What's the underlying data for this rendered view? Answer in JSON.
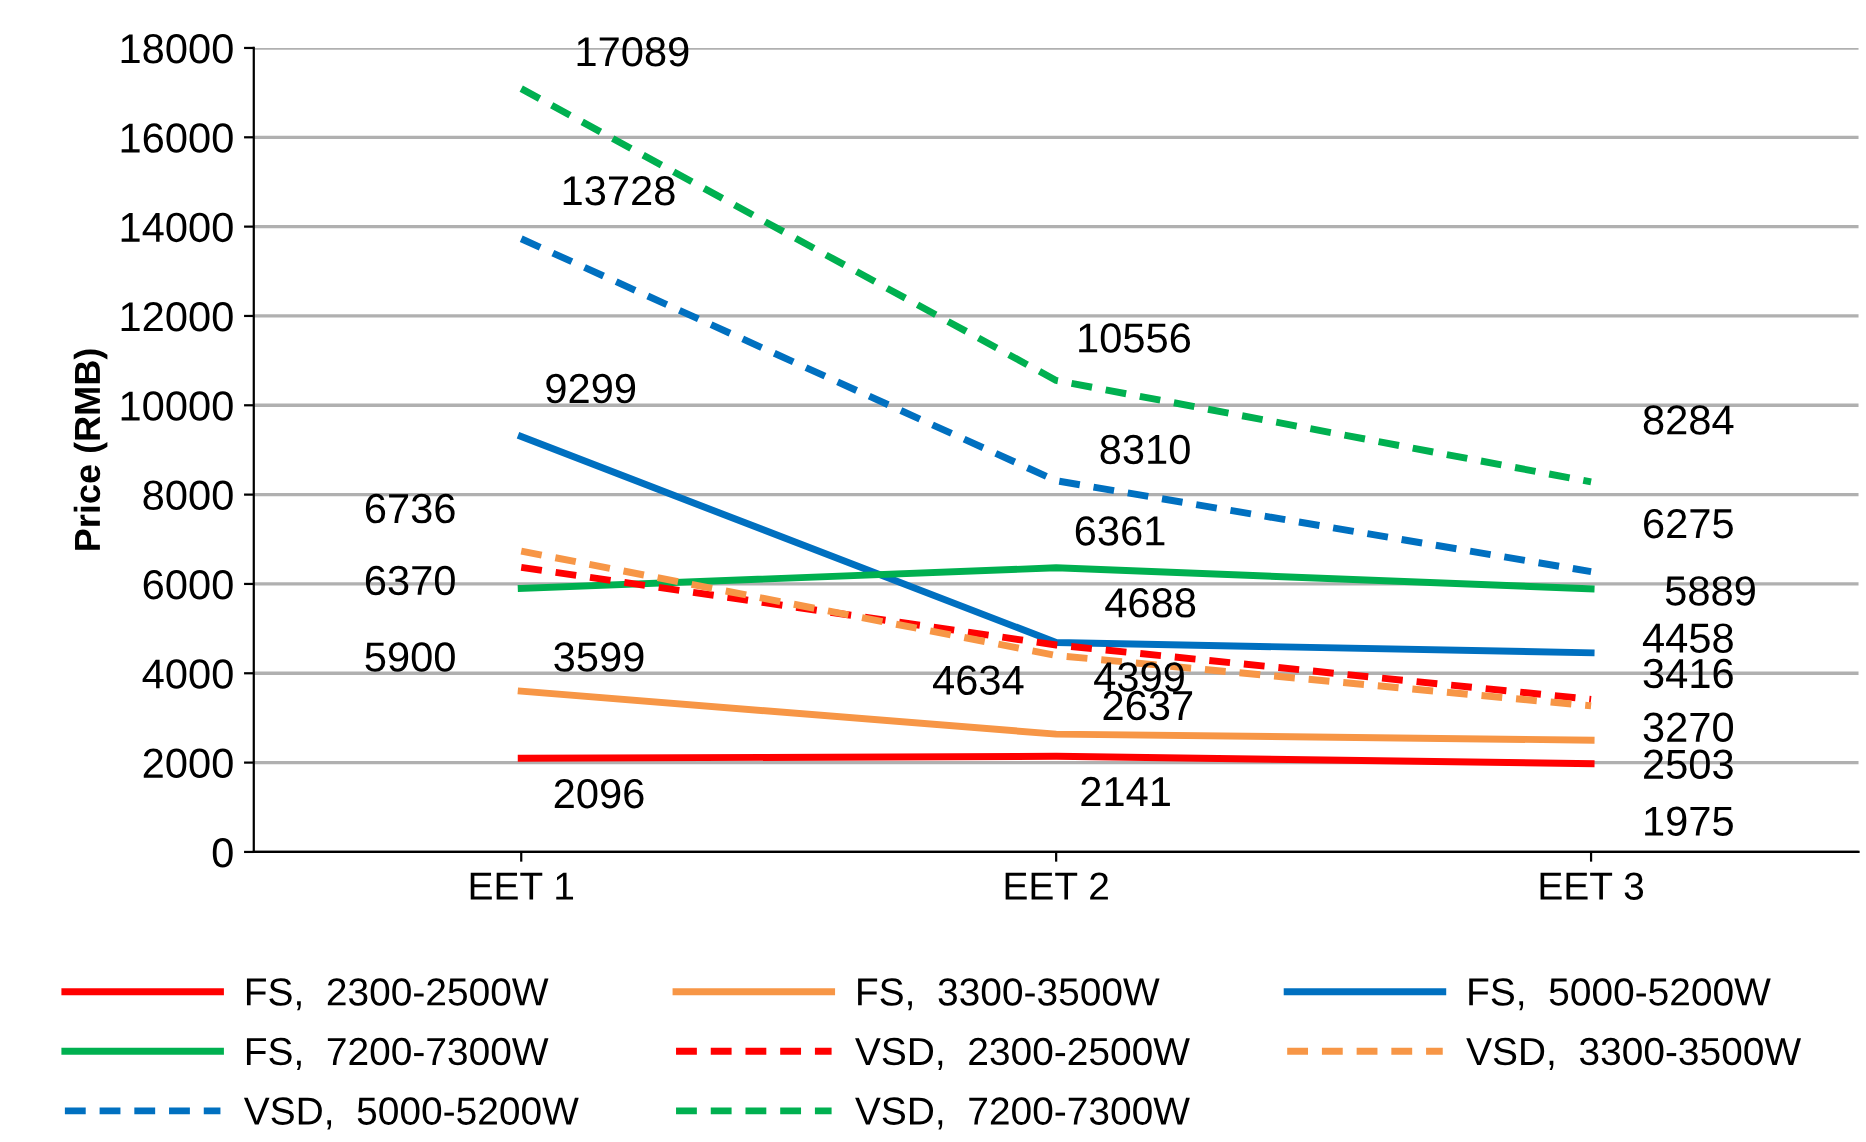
{
  "chart_data": {
    "type": "line",
    "ylabel": "Price (RMB)",
    "categories": [
      "EET 1",
      "EET 2",
      "EET 3"
    ],
    "ylim": [
      0,
      18000
    ],
    "yticks": [
      0,
      2000,
      4000,
      6000,
      8000,
      10000,
      12000,
      14000,
      16000,
      18000
    ],
    "grid": "y",
    "legend": "bottom",
    "data_labels": true,
    "marker": "none",
    "series": [
      {
        "name": "FS,  2300-2500W",
        "color": "#ff0000",
        "line_style": "solid",
        "values": [
          2096,
          2141,
          1975
        ]
      },
      {
        "name": "FS,  3300-3500W",
        "color": "#f79646",
        "line_style": "solid",
        "values": [
          3599,
          2637,
          2503
        ]
      },
      {
        "name": "FS,  5000-5200W",
        "color": "#0070c0",
        "line_style": "solid",
        "values": [
          9299,
          4688,
          4458
        ]
      },
      {
        "name": "FS,  7200-7300W",
        "color": "#00b050",
        "line_style": "solid",
        "values": [
          5900,
          6361,
          5889
        ]
      },
      {
        "name": "VSD,  2300-2500W",
        "color": "#ff0000",
        "line_style": "dashed",
        "values": [
          6370,
          4634,
          3416
        ]
      },
      {
        "name": "VSD,  3300-3500W",
        "color": "#f79646",
        "line_style": "dashed",
        "values": [
          6736,
          4399,
          3270
        ]
      },
      {
        "name": "VSD,  5000-5200W",
        "color": "#0070c0",
        "line_style": "dashed",
        "values": [
          13728,
          8310,
          6275
        ]
      },
      {
        "name": "VSD,  7200-7300W",
        "color": "#00b050",
        "line_style": "dashed",
        "values": [
          17089,
          10556,
          8284
        ]
      }
    ]
  }
}
